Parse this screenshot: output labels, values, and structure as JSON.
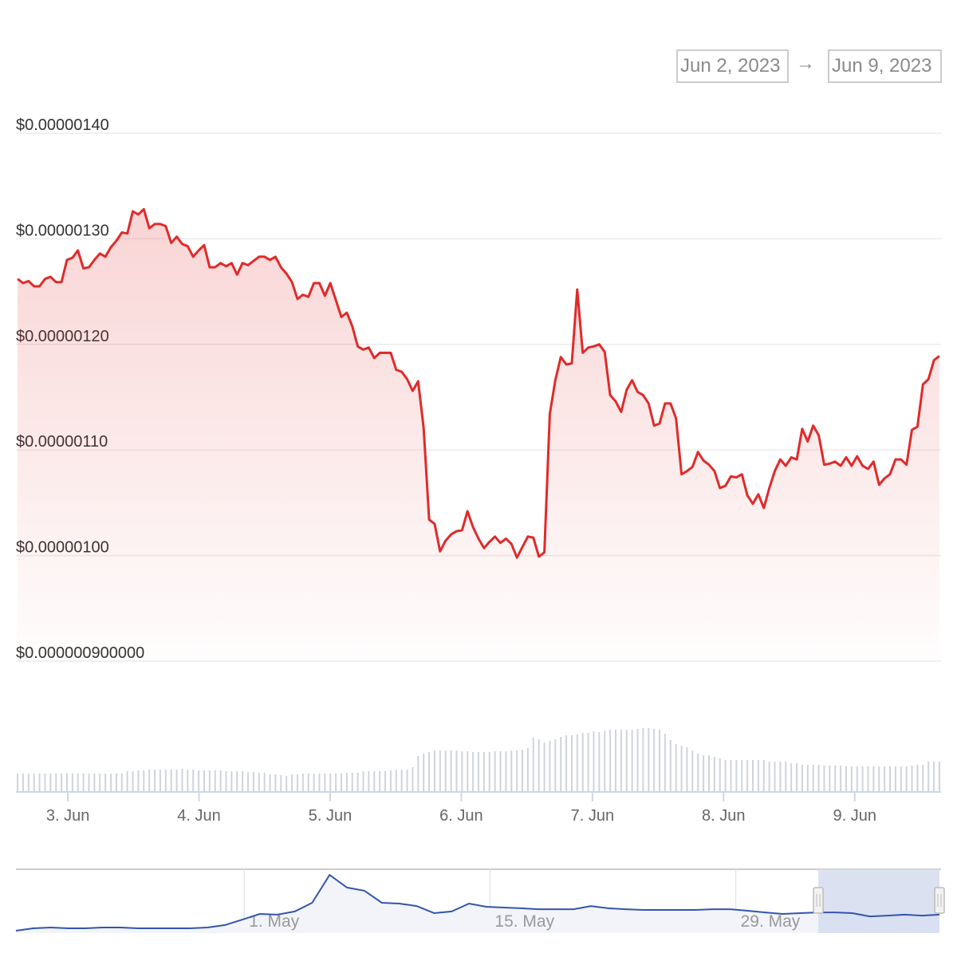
{
  "range_selector": {
    "from": "Jun 2, 2023",
    "arrow": "→",
    "to": "Jun 9, 2023"
  },
  "chart_data": {
    "type": "area",
    "title": "",
    "xlabel": "",
    "ylabel": "",
    "colors": {
      "line": "#e02a2a",
      "volume": "#cfd3dc",
      "navigator_line": "#3355aa",
      "navigator_selection": "#d5dcee"
    },
    "price": {
      "unit_scale": 1e-08,
      "x_unit": "hours since 2023-06-02 00:00",
      "x_start": 14.8,
      "x_end": 183.5,
      "values": [
        126.2,
        125.8,
        126.0,
        125.5,
        125.5,
        126.2,
        126.4,
        125.9,
        125.9,
        128.0,
        128.2,
        128.9,
        127.2,
        127.3,
        128.0,
        128.6,
        128.3,
        129.2,
        129.8,
        130.6,
        130.5,
        132.6,
        132.3,
        132.8,
        131.0,
        131.4,
        131.4,
        131.2,
        129.6,
        130.2,
        129.5,
        129.3,
        128.3,
        128.9,
        129.4,
        127.3,
        127.3,
        127.7,
        127.4,
        127.7,
        126.6,
        127.7,
        127.5,
        127.9,
        128.3,
        128.3,
        128.0,
        128.3,
        127.3,
        126.7,
        125.9,
        124.3,
        124.7,
        124.5,
        125.8,
        125.8,
        124.6,
        125.8,
        124.2,
        122.6,
        123.0,
        121.7,
        119.8,
        119.5,
        119.7,
        118.7,
        119.2,
        119.2,
        119.2,
        117.6,
        117.4,
        116.7,
        115.6,
        116.5,
        112.1,
        103.4,
        103.0,
        100.4,
        101.4,
        102.0,
        102.3,
        102.4,
        104.2,
        102.7,
        101.6,
        100.7,
        101.3,
        101.8,
        101.2,
        101.6,
        101.1,
        99.8,
        100.8,
        101.8,
        101.7,
        99.9,
        100.3,
        113.4,
        116.6,
        118.8,
        118.1,
        118.2,
        125.2,
        119.2,
        119.7,
        119.8,
        120.0,
        119.3,
        115.2,
        114.6,
        113.6,
        115.7,
        116.6,
        115.5,
        115.2,
        114.4,
        112.3,
        112.5,
        114.4,
        114.4,
        113.0,
        107.7,
        108.0,
        108.4,
        109.8,
        109.0,
        108.6,
        108.0,
        106.4,
        106.6,
        107.5,
        107.4,
        107.7,
        105.7,
        104.9,
        105.8,
        104.5,
        106.4,
        108.0,
        109.1,
        108.5,
        109.3,
        109.1,
        112.0,
        110.8,
        112.3,
        111.4,
        108.6,
        108.7,
        108.9,
        108.5,
        109.3,
        108.5,
        109.4,
        108.5,
        108.2,
        108.9,
        106.7,
        107.3,
        107.7,
        109.1,
        109.1,
        108.6,
        111.9,
        112.2,
        116.2,
        116.7,
        118.5,
        118.9
      ],
      "ylim": [
        90,
        140
      ],
      "y_ticks": [
        {
          "value": 140,
          "label": "$0.00000140"
        },
        {
          "value": 130,
          "label": "$0.00000130"
        },
        {
          "value": 120,
          "label": "$0.00000120"
        },
        {
          "value": 110,
          "label": "$0.00000110"
        },
        {
          "value": 100,
          "label": "$0.00000100"
        },
        {
          "value": 90,
          "label": "$0.000000900000"
        }
      ],
      "x_ticks": [
        {
          "value": 24,
          "label": "3. Jun"
        },
        {
          "value": 48,
          "label": "4. Jun"
        },
        {
          "value": 72,
          "label": "5. Jun"
        },
        {
          "value": 96,
          "label": "6. Jun"
        },
        {
          "value": 120,
          "label": "7. Jun"
        },
        {
          "value": 144,
          "label": "8. Jun"
        },
        {
          "value": 168,
          "label": "9. Jun"
        }
      ],
      "xlim": [
        14.5,
        183.8
      ]
    },
    "volume": {
      "unit": "relative",
      "values": [
        23,
        23,
        23,
        23,
        23,
        23,
        23,
        23,
        23,
        23,
        23,
        23,
        23,
        23,
        23,
        23,
        23,
        23,
        23,
        23,
        26,
        26,
        27,
        27,
        28,
        28,
        28,
        28,
        28,
        28,
        29,
        28,
        28,
        27,
        27,
        27,
        27,
        27,
        26,
        26,
        26,
        26,
        25,
        25,
        24,
        24,
        22,
        22,
        21,
        20,
        22,
        22,
        23,
        23,
        23,
        23,
        23,
        23,
        23,
        23,
        24,
        24,
        24,
        26,
        26,
        26,
        26,
        26,
        27,
        28,
        28,
        28,
        31,
        45,
        48,
        50,
        52,
        52,
        52,
        52,
        52,
        51,
        51,
        50,
        50,
        50,
        50,
        51,
        51,
        51,
        52,
        52,
        53,
        55,
        68,
        66,
        62,
        64,
        66,
        69,
        71,
        71,
        72,
        74,
        74,
        76,
        75,
        77,
        78,
        78,
        78,
        78,
        78,
        79,
        80,
        80,
        79,
        78,
        73,
        65,
        60,
        58,
        56,
        52,
        48,
        46,
        46,
        44,
        42,
        40,
        40,
        40,
        40,
        40,
        40,
        40,
        40,
        38,
        38,
        38,
        38,
        36,
        36,
        34,
        34,
        34,
        34,
        33,
        33,
        33,
        33,
        32,
        32,
        32,
        32,
        32,
        32,
        32,
        32,
        32,
        32,
        32,
        32,
        33,
        34,
        34,
        38,
        38,
        38
      ],
      "max": 100
    },
    "navigator": {
      "x_unit": "days since 2023-04-18",
      "x_start": 0,
      "x_end": 52.6,
      "values": [
        21,
        34,
        38,
        34,
        34,
        38,
        38,
        34,
        34,
        34,
        34,
        38,
        51,
        80,
        110,
        106,
        123,
        169,
        317,
        250,
        233,
        169,
        165,
        152,
        114,
        123,
        165,
        148,
        144,
        140,
        135,
        135,
        135,
        152,
        140,
        135,
        131,
        131,
        131,
        131,
        135,
        135,
        127,
        118,
        110,
        114,
        118,
        118,
        114,
        97,
        101,
        106,
        101,
        106
      ],
      "x_ticks": [
        {
          "value": 13,
          "label": "1. May"
        },
        {
          "value": 27,
          "label": "15. May"
        },
        {
          "value": 41,
          "label": "29. May"
        }
      ],
      "selection": [
        45.7,
        52.6
      ]
    }
  }
}
